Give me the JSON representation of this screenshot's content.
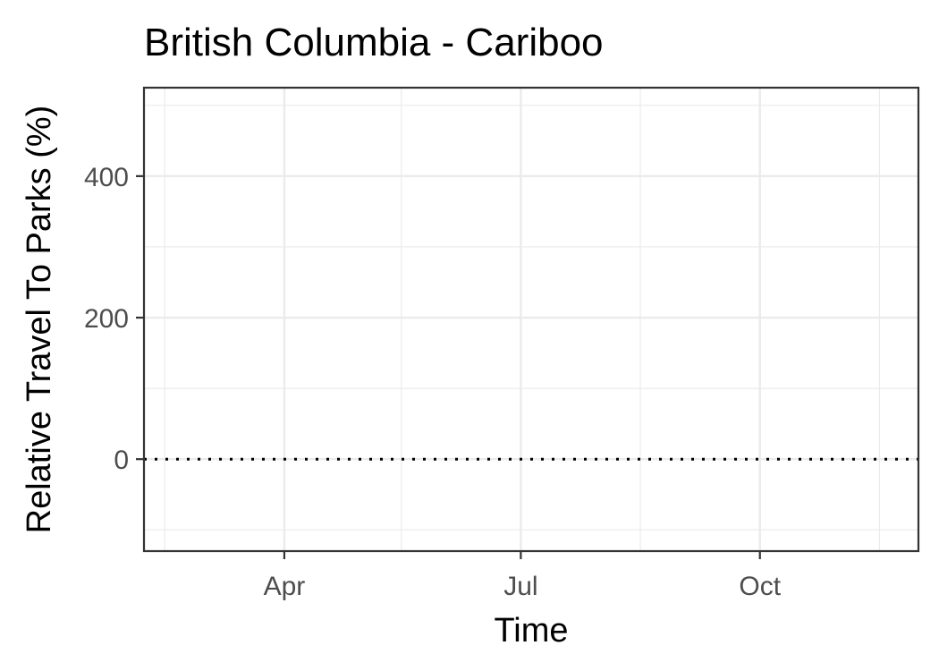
{
  "chart_data": {
    "type": "line",
    "title": "British Columbia - Cariboo",
    "xlabel": "Time",
    "ylabel": "Relative Travel To Parks (%)",
    "x_ticks": [
      {
        "label": "Apr",
        "date": "2020-04-01"
      },
      {
        "label": "Jul",
        "date": "2020-07-01"
      },
      {
        "label": "Oct",
        "date": "2020-10-01"
      }
    ],
    "x_minor_dates": [
      "2020-02-15",
      "2020-05-16",
      "2020-08-16",
      "2020-11-16"
    ],
    "xlim": [
      "2020-02-07",
      "2020-12-01"
    ],
    "y_ticks": [
      0,
      200,
      400
    ],
    "ylim": [
      -130,
      525
    ],
    "reference_line": {
      "y": 0,
      "style": "dotted"
    },
    "series": [],
    "grid": true,
    "theme": "bw"
  }
}
